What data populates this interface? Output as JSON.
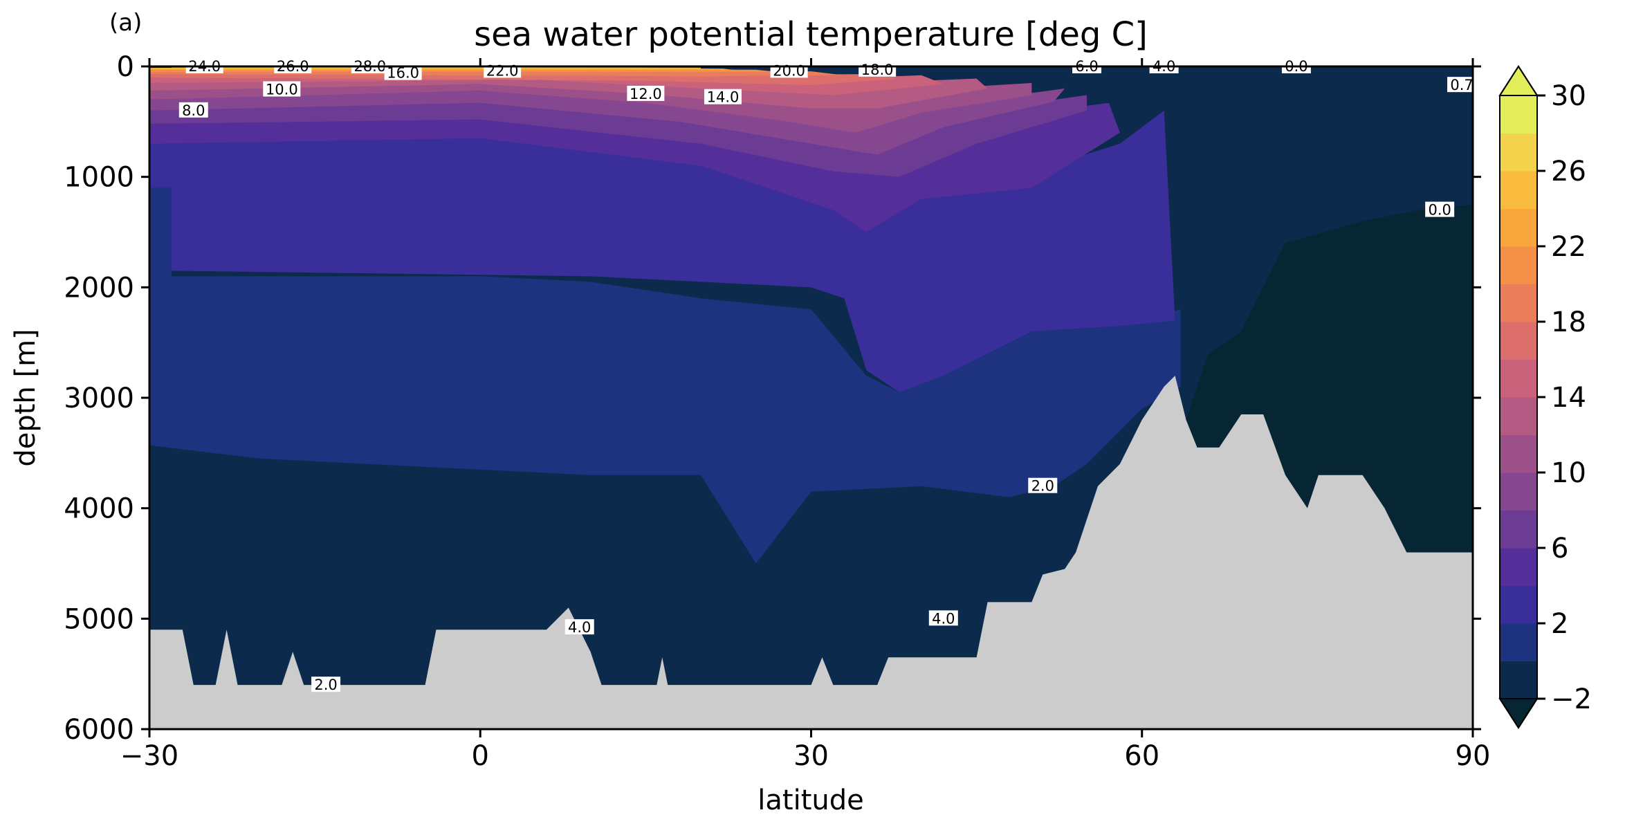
{
  "chart_data": {
    "type": "contourf",
    "panel_label": "(a)",
    "title": "sea water potential temperature [deg C]",
    "xlabel": "latitude",
    "ylabel": "depth [m]",
    "xlim": [
      -30,
      90
    ],
    "ylim": [
      6000,
      0
    ],
    "y_inverted": true,
    "xticks": [
      -30,
      0,
      30,
      60,
      90
    ],
    "xtick_labels": [
      "−30",
      "0",
      "30",
      "60",
      "90"
    ],
    "yticks": [
      0,
      1000,
      2000,
      3000,
      4000,
      5000,
      6000
    ],
    "ytick_labels": [
      "0",
      "1000",
      "2000",
      "3000",
      "4000",
      "5000",
      "6000"
    ],
    "levels": [
      -2,
      0,
      2,
      4,
      6,
      8,
      10,
      12,
      14,
      16,
      18,
      20,
      22,
      24,
      26,
      28,
      30
    ],
    "level_colors": [
      "#062633",
      "#0c2b4c",
      "#1d3380",
      "#3a2f9a",
      "#552f99",
      "#6c3b94",
      "#844790",
      "#9b508a",
      "#b35b82",
      "#c9627a",
      "#dc6e6c",
      "#ea7d5a",
      "#f48f47",
      "#f9a63c",
      "#f9bb3e",
      "#f2d34b",
      "#e4ee5a"
    ],
    "colorbar": {
      "ticks": [
        -2,
        2,
        6,
        10,
        14,
        18,
        22,
        26,
        30
      ],
      "tick_labels": [
        "−2",
        "2",
        "6",
        "10",
        "14",
        "18",
        "22",
        "26",
        "30"
      ],
      "extend": "both"
    },
    "land_color": "#cccccc",
    "contour_labels": [
      {
        "text": "24.0",
        "lat": -25,
        "depth": 0
      },
      {
        "text": "26.0",
        "lat": -17,
        "depth": 0
      },
      {
        "text": "28.0",
        "lat": -10,
        "depth": 0
      },
      {
        "text": "16.0",
        "lat": -7,
        "depth": 60
      },
      {
        "text": "22.0",
        "lat": 2,
        "depth": 40
      },
      {
        "text": "20.0",
        "lat": 28,
        "depth": 40
      },
      {
        "text": "18.0",
        "lat": 36,
        "depth": 30
      },
      {
        "text": "6.0",
        "lat": 55,
        "depth": 0
      },
      {
        "text": "4.0",
        "lat": 62,
        "depth": 0
      },
      {
        "text": "0.0",
        "lat": 74,
        "depth": 0
      },
      {
        "text": "0.7",
        "lat": 89,
        "depth": 170
      },
      {
        "text": "8.0",
        "lat": -26,
        "depth": 400
      },
      {
        "text": "10.0",
        "lat": -18,
        "depth": 210
      },
      {
        "text": "12.0",
        "lat": 15,
        "depth": 250
      },
      {
        "text": "14.0",
        "lat": 22,
        "depth": 280
      },
      {
        "text": "0.0",
        "lat": 87,
        "depth": 1300
      },
      {
        "text": "2.0",
        "lat": 51,
        "depth": 3800
      },
      {
        "text": "4.0",
        "lat": 9,
        "depth": 5080
      },
      {
        "text": "4.0",
        "lat": 42,
        "depth": 5000
      },
      {
        "text": "2.0",
        "lat": -14,
        "depth": 5600
      }
    ],
    "grid": false
  }
}
